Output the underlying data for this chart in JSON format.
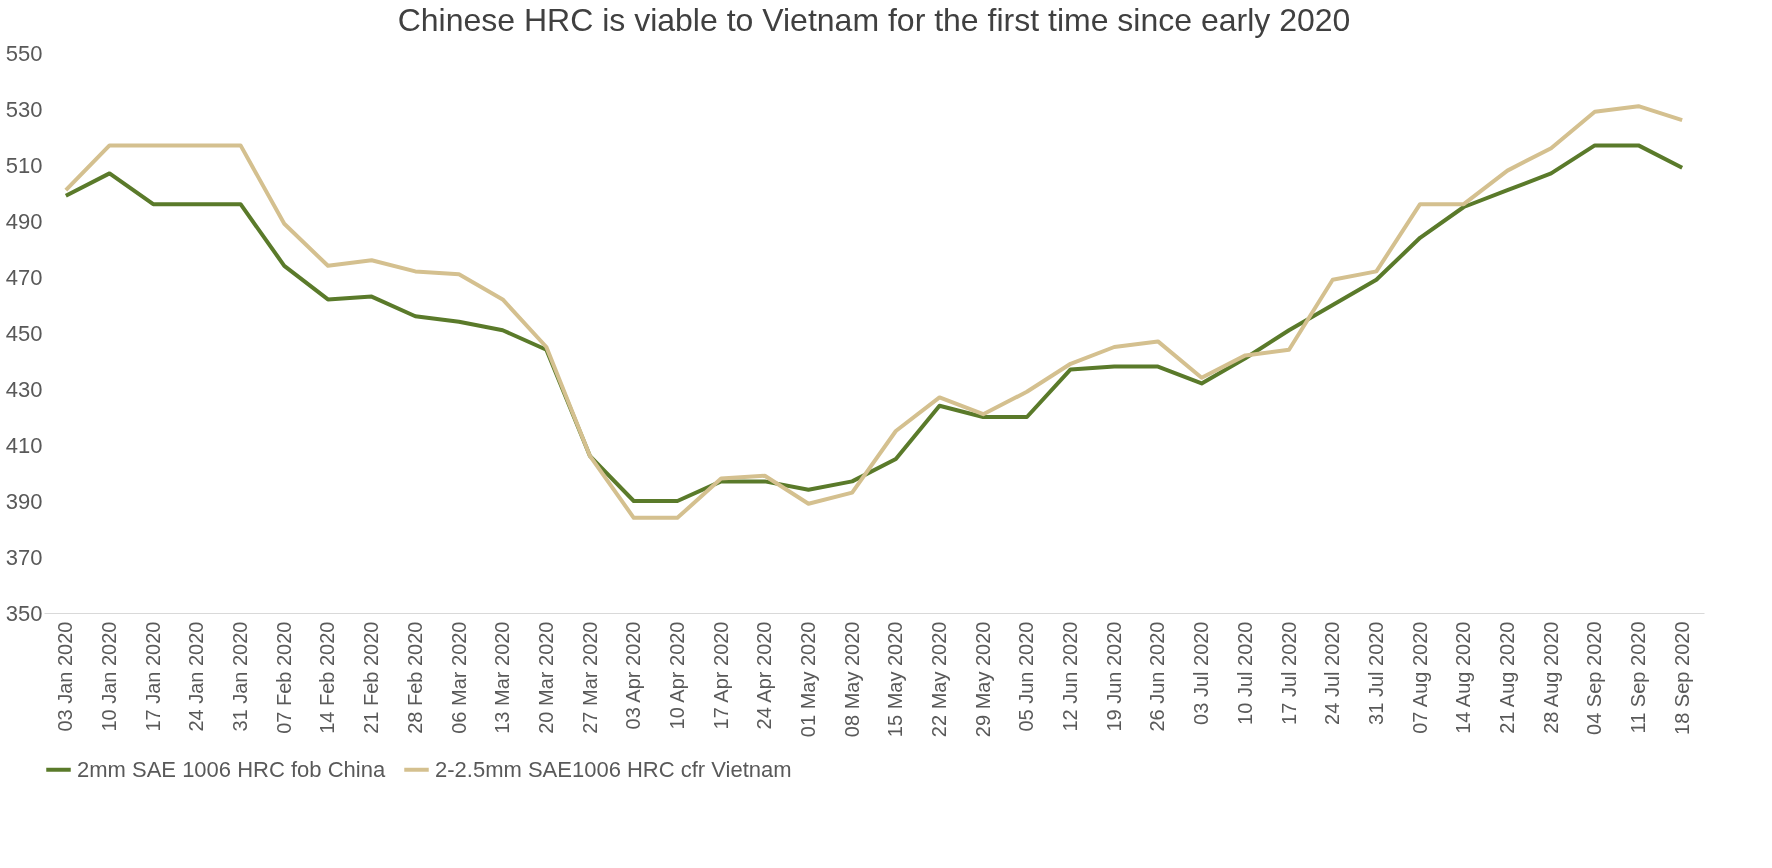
{
  "chart_data": {
    "type": "line",
    "title": "Chinese HRC is viable to Vietnam for the first time since early 2020",
    "categories": [
      "03 Jan 2020",
      "10 Jan 2020",
      "17 Jan 2020",
      "24 Jan 2020",
      "31 Jan 2020",
      "07 Feb 2020",
      "14 Feb 2020",
      "21 Feb 2020",
      "28 Feb 2020",
      "06 Mar 2020",
      "13 Mar 2020",
      "20 Mar 2020",
      "27 Mar 2020",
      "03 Apr 2020",
      "10 Apr 2020",
      "17 Apr 2020",
      "24 Apr 2020",
      "01 May 2020",
      "08 May 2020",
      "15 May 2020",
      "22 May 2020",
      "29 May 2020",
      "05 Jun 2020",
      "12 Jun 2020",
      "19 Jun 2020",
      "26 Jun 2020",
      "03 Jul 2020",
      "10 Jul 2020",
      "17 Jul 2020",
      "24 Jul 2020",
      "31 Jul 2020",
      "07 Aug 2020",
      "14 Aug 2020",
      "21 Aug 2020",
      "28 Aug 2020",
      "04 Sep 2020",
      "11 Sep 2020",
      "18 Sep 2020"
    ],
    "series": [
      {
        "name": "2mm SAE 1006 HRC fob China",
        "color": "#5a7a2a",
        "values": [
          499,
          507,
          496,
          496,
          496,
          474,
          462,
          463,
          456,
          454,
          451,
          444,
          406,
          390,
          390,
          397,
          397,
          394,
          397,
          405,
          424,
          420,
          420,
          437,
          438,
          438,
          432,
          441,
          451,
          460,
          469,
          484,
          495,
          501,
          507,
          517,
          517,
          509
        ]
      },
      {
        "name": "2-2.5mm SAE1006 HRC cfr Vietnam",
        "color": "#d4c08f",
        "values": [
          501,
          517,
          517,
          517,
          517,
          489,
          474,
          476,
          472,
          471,
          462,
          445,
          406,
          384,
          384,
          398,
          399,
          389,
          393,
          415,
          427,
          421,
          429,
          439,
          445,
          447,
          434,
          442,
          444,
          469,
          472,
          496,
          496,
          508,
          516,
          529,
          531,
          526
        ]
      }
    ],
    "ylim": [
      350,
      550
    ],
    "yticks": [
      350,
      370,
      390,
      410,
      430,
      450,
      470,
      490,
      510,
      530,
      550
    ],
    "grid": false,
    "legend": "bottom",
    "marker": "none",
    "line_style": "solid"
  }
}
